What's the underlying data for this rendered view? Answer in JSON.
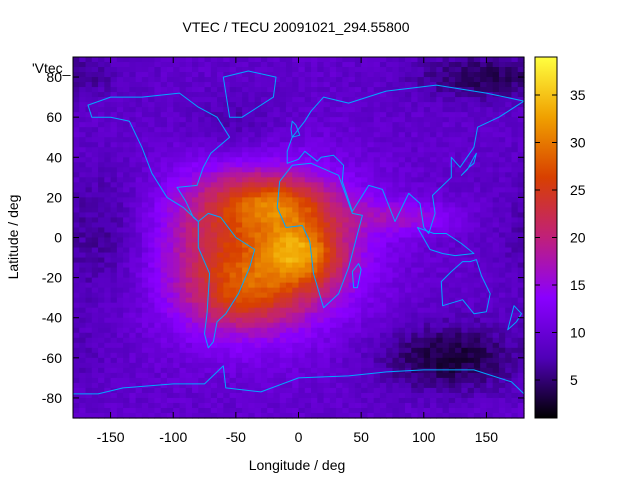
{
  "chart_data": {
    "type": "heatmap",
    "title": "VTEC / TECU 20091021_294.55800",
    "xlabel": "Longitude / deg",
    "ylabel": "Latitude / deg",
    "key_label": "'Vtec_",
    "xlim": [
      -180,
      180
    ],
    "ylim": [
      -90,
      90
    ],
    "x_ticks": [
      -150,
      -100,
      -50,
      0,
      50,
      100,
      150
    ],
    "y_ticks": [
      -80,
      -60,
      -40,
      -20,
      0,
      20,
      40,
      60,
      80
    ],
    "colorbar": {
      "range": [
        1,
        39
      ],
      "ticks": [
        5,
        10,
        15,
        20,
        25,
        30,
        35
      ],
      "palette": [
        "#000000",
        "#5000b8",
        "#8a00ff",
        "#c0207a",
        "#d84000",
        "#f0a000",
        "#ffff40"
      ]
    },
    "grid": false,
    "field": {
      "background_tecu": 9,
      "anomalies": [
        {
          "name": "equatorial-anomaly",
          "lon": -35,
          "lat": -5,
          "sx": 55,
          "sy": 28,
          "amp": 17
        },
        {
          "name": "peak-southern-crest",
          "lon": 5,
          "lat": -8,
          "sx": 22,
          "sy": 12,
          "amp": 11
        },
        {
          "name": "peak-northern-crest",
          "lon": -20,
          "lat": 18,
          "sx": 35,
          "sy": 9,
          "amp": 9
        },
        {
          "name": "southern-lobe",
          "lon": -45,
          "lat": -30,
          "sx": 30,
          "sy": 12,
          "amp": 7
        },
        {
          "name": "eastward-tail",
          "lon": 85,
          "lat": 10,
          "sx": 30,
          "sy": 6,
          "amp": 6
        }
      ],
      "depletions": [
        {
          "name": "south-pacific-low",
          "lon": 120,
          "lat": -60,
          "sx": 40,
          "sy": 12,
          "amp": -6
        },
        {
          "name": "arctic-low",
          "lon": 150,
          "lat": 80,
          "sx": 40,
          "sy": 8,
          "amp": -5
        },
        {
          "name": "eastern-pacific-low",
          "lon": -150,
          "lat": 0,
          "sx": 30,
          "sy": 25,
          "amp": -4
        },
        {
          "name": "north-atlantic-low",
          "lon": -50,
          "lat": 55,
          "sx": 30,
          "sy": 12,
          "amp": -3
        }
      ]
    },
    "coastlines": [
      {
        "name": "south-america",
        "points": [
          [
            -80,
            8
          ],
          [
            -72,
            12
          ],
          [
            -62,
            10
          ],
          [
            -50,
            0
          ],
          [
            -35,
            -6
          ],
          [
            -39,
            -15
          ],
          [
            -48,
            -28
          ],
          [
            -58,
            -38
          ],
          [
            -65,
            -42
          ],
          [
            -68,
            -52
          ],
          [
            -72,
            -55
          ],
          [
            -75,
            -48
          ],
          [
            -73,
            -38
          ],
          [
            -71,
            -18
          ],
          [
            -80,
            -5
          ],
          [
            -80,
            8
          ]
        ]
      },
      {
        "name": "africa",
        "points": [
          [
            -17,
            15
          ],
          [
            -15,
            28
          ],
          [
            -5,
            36
          ],
          [
            10,
            37
          ],
          [
            32,
            31
          ],
          [
            43,
            12
          ],
          [
            51,
            11
          ],
          [
            40,
            -15
          ],
          [
            32,
            -28
          ],
          [
            20,
            -35
          ],
          [
            12,
            -18
          ],
          [
            9,
            -2
          ],
          [
            3,
            6
          ],
          [
            -10,
            5
          ],
          [
            -17,
            15
          ]
        ]
      },
      {
        "name": "north-america",
        "points": [
          [
            -168,
            66
          ],
          [
            -150,
            70
          ],
          [
            -125,
            70
          ],
          [
            -95,
            72
          ],
          [
            -80,
            65
          ],
          [
            -65,
            60
          ],
          [
            -55,
            50
          ],
          [
            -70,
            42
          ],
          [
            -76,
            35
          ],
          [
            -81,
            26
          ],
          [
            -97,
            25
          ],
          [
            -90,
            18
          ],
          [
            -84,
            10
          ],
          [
            -80,
            8
          ],
          [
            -92,
            15
          ],
          [
            -105,
            20
          ],
          [
            -117,
            32
          ],
          [
            -125,
            45
          ],
          [
            -135,
            58
          ],
          [
            -150,
            60
          ],
          [
            -165,
            60
          ],
          [
            -168,
            66
          ]
        ]
      },
      {
        "name": "greenland",
        "points": [
          [
            -55,
            60
          ],
          [
            -45,
            60
          ],
          [
            -20,
            70
          ],
          [
            -18,
            80
          ],
          [
            -40,
            83
          ],
          [
            -60,
            80
          ],
          [
            -55,
            60
          ]
        ]
      },
      {
        "name": "eurasia",
        "points": [
          [
            -9,
            43
          ],
          [
            -9,
            37
          ],
          [
            0,
            39
          ],
          [
            5,
            43
          ],
          [
            15,
            38
          ],
          [
            18,
            40
          ],
          [
            28,
            41
          ],
          [
            36,
            36
          ],
          [
            35,
            28
          ],
          [
            43,
            13
          ],
          [
            56,
            26
          ],
          [
            67,
            24
          ],
          [
            77,
            8
          ],
          [
            88,
            22
          ],
          [
            97,
            17
          ],
          [
            100,
            5
          ],
          [
            104,
            2
          ],
          [
            109,
            12
          ],
          [
            107,
            21
          ],
          [
            122,
            30
          ],
          [
            122,
            40
          ],
          [
            129,
            35
          ],
          [
            140,
            45
          ],
          [
            143,
            55
          ],
          [
            160,
            60
          ],
          [
            180,
            68
          ],
          [
            150,
            72
          ],
          [
            110,
            76
          ],
          [
            70,
            73
          ],
          [
            40,
            67
          ],
          [
            20,
            70
          ],
          [
            10,
            63
          ],
          [
            5,
            58
          ],
          [
            -5,
            50
          ],
          [
            -9,
            43
          ]
        ]
      },
      {
        "name": "australia",
        "points": [
          [
            114,
            -22
          ],
          [
            122,
            -17
          ],
          [
            131,
            -12
          ],
          [
            137,
            -12
          ],
          [
            142,
            -11
          ],
          [
            146,
            -19
          ],
          [
            153,
            -28
          ],
          [
            150,
            -37
          ],
          [
            140,
            -38
          ],
          [
            131,
            -31
          ],
          [
            115,
            -34
          ],
          [
            114,
            -22
          ]
        ]
      },
      {
        "name": "antarctica",
        "points": [
          [
            -180,
            -85
          ],
          [
            -180,
            -78
          ],
          [
            -160,
            -78
          ],
          [
            -140,
            -75
          ],
          [
            -100,
            -73
          ],
          [
            -75,
            -73
          ],
          [
            -60,
            -64
          ],
          [
            -58,
            -75
          ],
          [
            -30,
            -77
          ],
          [
            0,
            -70
          ],
          [
            40,
            -69
          ],
          [
            70,
            -67
          ],
          [
            100,
            -66
          ],
          [
            140,
            -66
          ],
          [
            170,
            -72
          ],
          [
            180,
            -78
          ]
        ]
      },
      {
        "name": "madagascar",
        "points": [
          [
            44,
            -25
          ],
          [
            43,
            -17
          ],
          [
            48,
            -13
          ],
          [
            50,
            -16
          ],
          [
            47,
            -25
          ],
          [
            44,
            -25
          ]
        ]
      },
      {
        "name": "new-zealand",
        "points": [
          [
            172,
            -34
          ],
          [
            178,
            -38
          ],
          [
            174,
            -42
          ],
          [
            167,
            -46
          ],
          [
            172,
            -34
          ]
        ]
      },
      {
        "name": "japan",
        "points": [
          [
            130,
            31
          ],
          [
            136,
            35
          ],
          [
            140,
            37
          ],
          [
            142,
            42
          ],
          [
            140,
            40
          ],
          [
            135,
            34
          ],
          [
            130,
            31
          ]
        ]
      },
      {
        "name": "indonesia",
        "points": [
          [
            95,
            5
          ],
          [
            105,
            -6
          ],
          [
            115,
            -8
          ],
          [
            125,
            -9
          ],
          [
            140,
            -8
          ],
          [
            130,
            -3
          ],
          [
            118,
            2
          ],
          [
            108,
            2
          ],
          [
            95,
            5
          ]
        ]
      },
      {
        "name": "british-isles",
        "points": [
          [
            -5,
            50
          ],
          [
            1,
            51
          ],
          [
            -2,
            56
          ],
          [
            -5,
            58
          ],
          [
            -6,
            54
          ],
          [
            -5,
            50
          ]
        ]
      }
    ]
  }
}
